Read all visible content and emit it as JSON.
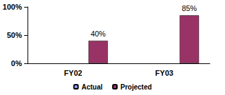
{
  "chart_data": {
    "type": "bar",
    "categories": [
      "FY02",
      "FY03"
    ],
    "series": [
      {
        "name": "Actual",
        "color": "#9999ff",
        "values": [
          null,
          null
        ],
        "value_labels": [
          null,
          null
        ]
      },
      {
        "name": "Projected",
        "color": "#993366",
        "values": [
          40,
          85
        ],
        "value_labels": [
          "40%",
          "85%"
        ]
      }
    ],
    "ylim": [
      0,
      100
    ],
    "yticks": [
      {
        "value": 0,
        "label": "0%"
      },
      {
        "value": 50,
        "label": "50%"
      },
      {
        "value": 100,
        "label": "100%"
      }
    ],
    "grid": false,
    "legend": "bottom",
    "data_labels": true
  }
}
